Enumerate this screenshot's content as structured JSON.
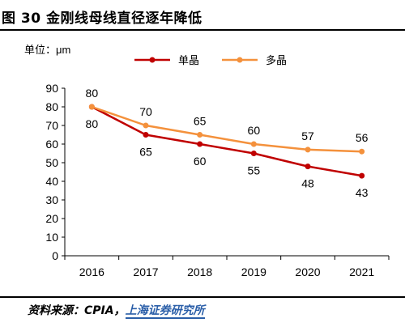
{
  "figure": {
    "title": "图 30 金刚线母线直径逐年降低",
    "source_prefix": "资料来源：CPIA，",
    "source_org": "上海证券研究所"
  },
  "chart_data": {
    "type": "line",
    "unit_label": "单位：μm",
    "x": [
      "2016",
      "2017",
      "2018",
      "2019",
      "2020",
      "2021"
    ],
    "ylim": [
      0,
      90
    ],
    "yticks": [
      0,
      10,
      20,
      30,
      40,
      50,
      60,
      70,
      80,
      90
    ],
    "grid": false,
    "legend_position": "top-right",
    "series": [
      {
        "name": "单晶",
        "color": "#c00000",
        "values": [
          80,
          65,
          60,
          55,
          48,
          43
        ],
        "label_position": "below"
      },
      {
        "name": "多晶",
        "color": "#f4913c",
        "values": [
          80,
          70,
          65,
          60,
          57,
          56
        ],
        "label_position": "above"
      }
    ]
  }
}
